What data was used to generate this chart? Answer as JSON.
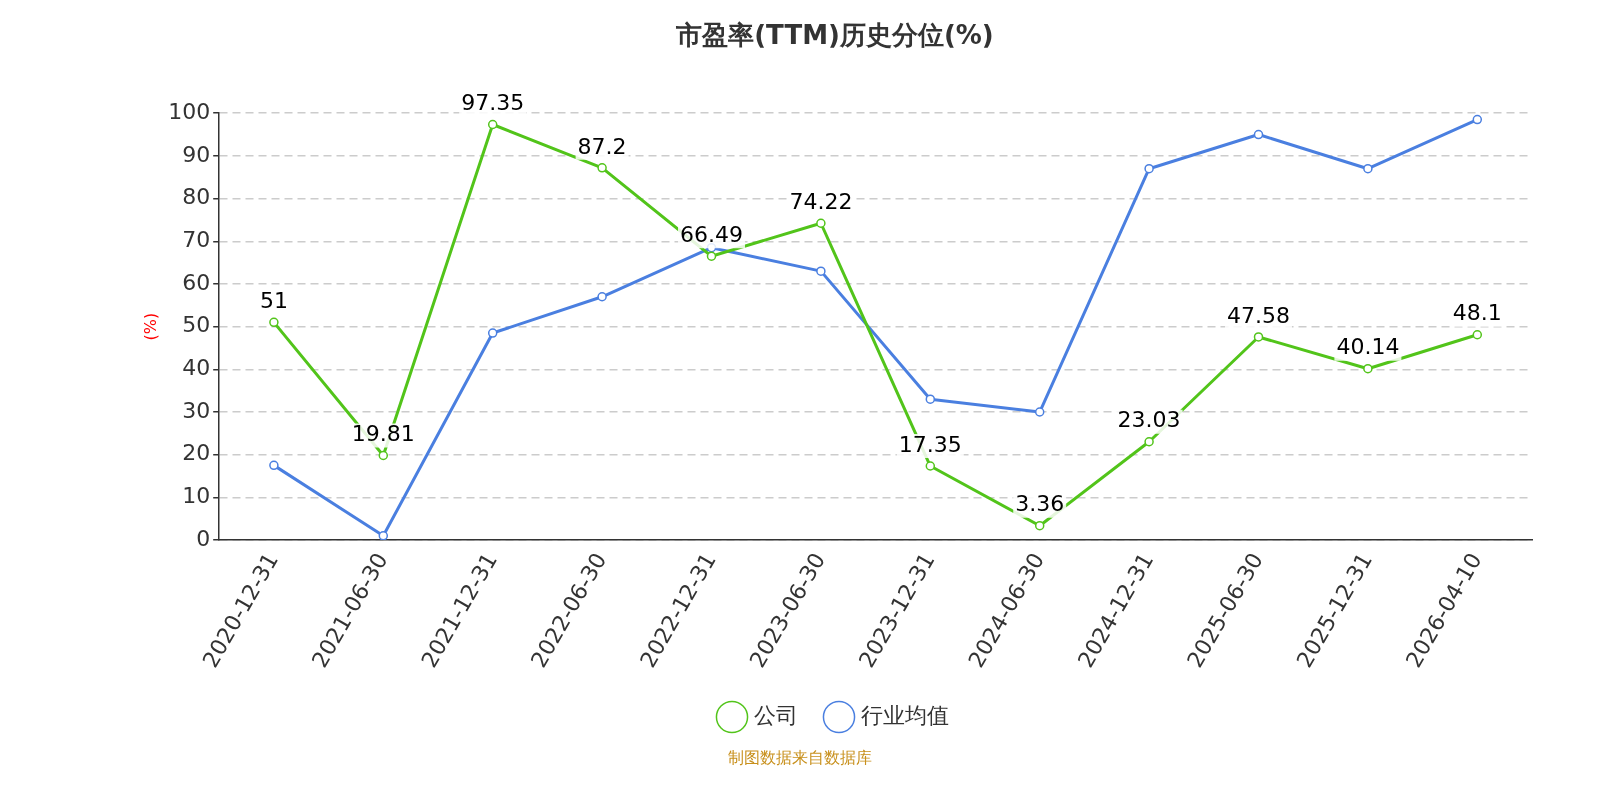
{
  "chart_data": {
    "type": "line",
    "title": "市盈率(TTM)历史分位(%)",
    "ylabel": "(%)",
    "categories": [
      "2020-12-31",
      "2021-06-30",
      "2021-12-31",
      "2022-06-30",
      "2022-12-31",
      "2023-06-30",
      "2023-12-31",
      "2024-06-30",
      "2024-12-31",
      "2025-06-30",
      "2025-12-31",
      "2026-04-10"
    ],
    "series": [
      {
        "name": "公司",
        "color": "#52c41a",
        "values": [
          51,
          19.81,
          97.35,
          87.2,
          66.49,
          74.22,
          17.35,
          3.36,
          23.03,
          47.58,
          40.14,
          48.1
        ],
        "value_labels": [
          "51",
          "19.81",
          "97.35",
          "87.2",
          "66.49",
          "74.22",
          "17.35",
          "3.36",
          "23.03",
          "47.58",
          "40.14",
          "48.1"
        ]
      },
      {
        "name": "行业均值",
        "color": "#4a7fe0",
        "values": [
          17.5,
          1,
          48.5,
          57,
          68.5,
          63,
          33,
          30,
          87,
          95,
          87,
          98.5
        ]
      }
    ],
    "ylim": [
      0,
      100
    ],
    "yticks": [
      0,
      10,
      20,
      30,
      40,
      50,
      60,
      70,
      80,
      90,
      100
    ],
    "grid": "y",
    "legend": "bottom",
    "marker": "circle",
    "line_style": "solid",
    "annotations": [
      "制图数据来自数据库"
    ]
  }
}
